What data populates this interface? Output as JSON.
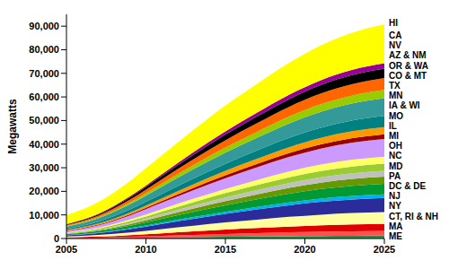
{
  "chart_data": {
    "type": "area",
    "stacked": true,
    "y_label": "Megawatts",
    "x": [
      2005,
      2007,
      2009,
      2011,
      2013,
      2015,
      2017,
      2019,
      2021,
      2023,
      2025
    ],
    "xlim": [
      2005,
      2025
    ],
    "xticks": [
      2005,
      2010,
      2015,
      2020,
      2025
    ],
    "ylim": [
      0,
      95000
    ],
    "yticks": [
      0,
      {
        "value": 10000,
        "label": "10,000"
      },
      {
        "value": 20000,
        "label": "20,000"
      },
      {
        "value": 30000,
        "label": "30,000"
      },
      {
        "value": 40000,
        "label": "40,000"
      },
      {
        "value": 50000,
        "label": "50,000"
      },
      {
        "value": 60000,
        "label": "60,000"
      },
      {
        "value": 70000,
        "label": "70,000"
      },
      {
        "value": 80000,
        "label": "80,000"
      },
      {
        "value": 90000,
        "label": "90,000"
      }
    ],
    "grid": false,
    "series": [
      {
        "name": "ME",
        "color": "#00a050",
        "values": [
          90,
          160,
          280,
          430,
          585,
          730,
          860,
          985,
          1085,
          1155,
          1200
        ]
      },
      {
        "name": "MA",
        "color": "#ff5050",
        "values": [
          150,
          265,
          465,
          720,
          975,
          1215,
          1430,
          1640,
          1805,
          1925,
          2000
        ]
      },
      {
        "name": "CT, RI & NH",
        "color": "#e00000",
        "values": [
          230,
          400,
          700,
          1080,
          1460,
          1820,
          2150,
          2455,
          2710,
          2890,
          3000
        ]
      },
      {
        "name": "NY",
        "color": "#ffffa0",
        "values": [
          380,
          665,
          1165,
          1800,
          2435,
          3035,
          3580,
          4095,
          4515,
          4815,
          5000
        ]
      },
      {
        "name": "NJ",
        "color": "#2b2b9a",
        "values": [
          455,
          800,
          1400,
          2160,
          2920,
          3640,
          4295,
          4915,
          5420,
          5780,
          6000
        ]
      },
      {
        "name": "DC & DE",
        "color": "#00b0f0",
        "values": [
          115,
          200,
          350,
          540,
          730,
          910,
          1075,
          1230,
          1355,
          1445,
          1500
        ]
      },
      {
        "name": "PA",
        "color": "#009933",
        "values": [
          340,
          600,
          1050,
          1620,
          2190,
          2730,
          3220,
          3685,
          4065,
          4335,
          4500
        ]
      },
      {
        "name": "MD",
        "color": "#669900",
        "values": [
          230,
          400,
          700,
          1080,
          1460,
          1820,
          2150,
          2455,
          2710,
          2890,
          3000
        ]
      },
      {
        "name": "NC",
        "color": "#c0c0c0",
        "values": [
          190,
          330,
          580,
          900,
          1220,
          1520,
          1790,
          2050,
          2260,
          2410,
          2500
        ]
      },
      {
        "name": "OH",
        "color": "#99cc33",
        "values": [
          230,
          400,
          700,
          1080,
          1460,
          1820,
          2150,
          2455,
          2710,
          2890,
          3000
        ]
      },
      {
        "name": "MI",
        "color": "#ffff66",
        "values": [
          200,
          380,
          680,
          1050,
          1430,
          1800,
          2130,
          2440,
          2700,
          2880,
          3000
        ]
      },
      {
        "name": "IL",
        "color": "#cc99ff",
        "values": [
          570,
          1000,
          1750,
          2700,
          3650,
          4550,
          5370,
          6140,
          6770,
          7220,
          7500
        ]
      },
      {
        "name": "MO",
        "color": "#990000",
        "values": [
          150,
          265,
          465,
          720,
          975,
          1215,
          1430,
          1640,
          1805,
          1925,
          2000
        ]
      },
      {
        "name": "IA & WI",
        "color": "#ff9900",
        "values": [
          300,
          480,
          780,
          1150,
          1520,
          1870,
          2180,
          2480,
          2720,
          2900,
          3000
        ]
      },
      {
        "name": "MN",
        "color": "#008080",
        "values": [
          500,
          800,
          1250,
          1850,
          2450,
          3000,
          3500,
          3960,
          4340,
          4620,
          4800
        ]
      },
      {
        "name": "TX",
        "color": "#339999",
        "values": [
          900,
          1400,
          2200,
          3100,
          3950,
          4750,
          5450,
          6150,
          6750,
          7200,
          7500
        ]
      },
      {
        "name": "CO & MT",
        "color": "#99cc00",
        "values": [
          270,
          465,
          815,
          1260,
          1705,
          2125,
          2505,
          2865,
          3160,
          3370,
          3500
        ]
      },
      {
        "name": "OR & WA",
        "color": "#ff6600",
        "values": [
          400,
          700,
          1200,
          1850,
          2480,
          3080,
          3620,
          4120,
          4540,
          4830,
          5000
        ]
      },
      {
        "name": "AZ & NM",
        "color": "#000000",
        "values": [
          250,
          470,
          880,
          1400,
          1930,
          2420,
          2860,
          3270,
          3610,
          3850,
          4000
        ]
      },
      {
        "name": "NV",
        "color": "#990099",
        "values": [
          150,
          280,
          520,
          810,
          1100,
          1380,
          1640,
          1880,
          2070,
          2210,
          2300
        ]
      },
      {
        "name": "CA",
        "color": "#ffff00",
        "values": [
          3800,
          5000,
          6500,
          8000,
          9500,
          11000,
          12300,
          13600,
          14800,
          15800,
          16500
        ]
      },
      {
        "name": "HI",
        "color": "#ffffff",
        "values": [
          50,
          90,
          160,
          250,
          340,
          420,
          500,
          570,
          630,
          675,
          700
        ]
      }
    ]
  }
}
